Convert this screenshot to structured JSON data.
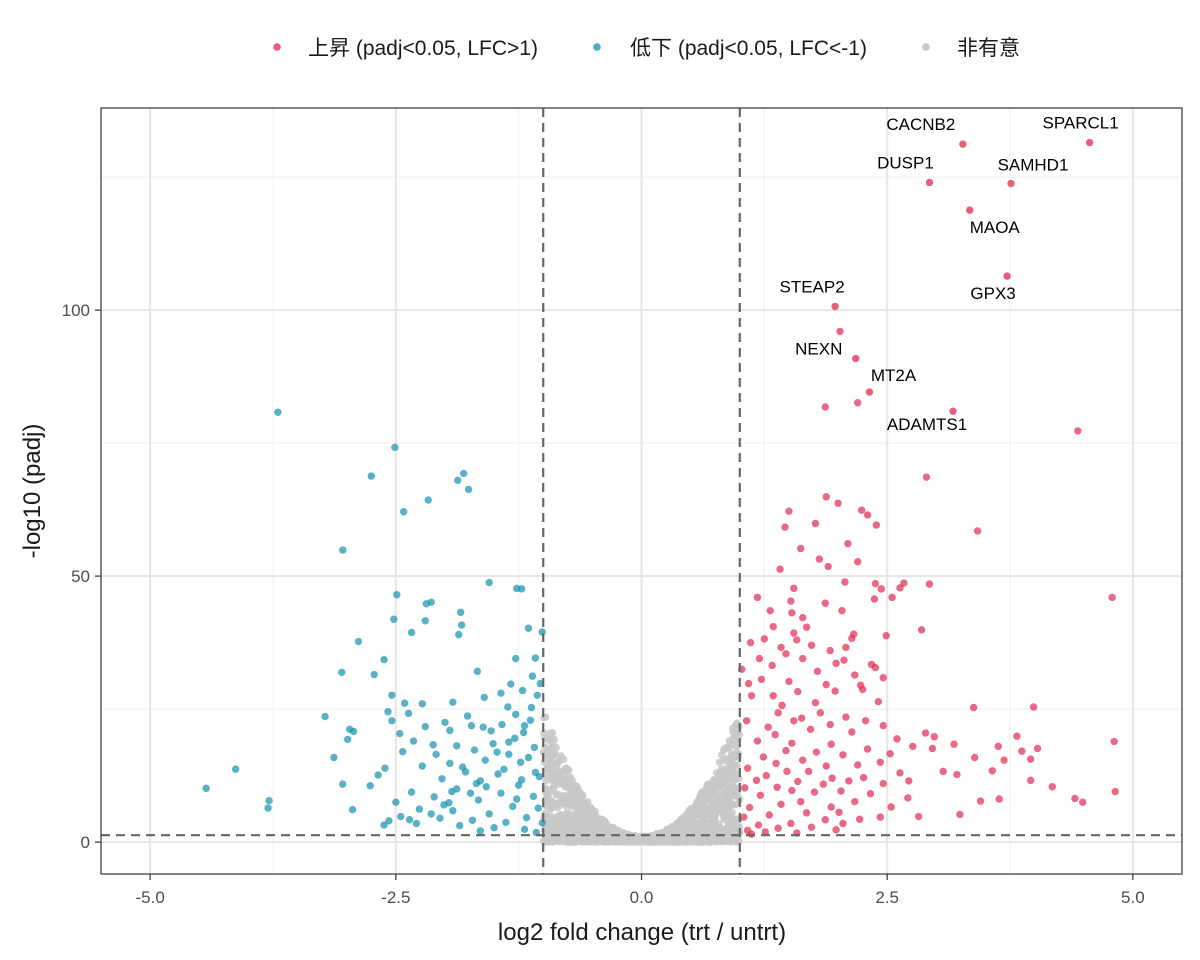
{
  "chart_data": {
    "type": "scatter",
    "subtype": "volcano",
    "title": "",
    "xlabel": "log2 fold change (trt / untrt)",
    "ylabel": "-log10 (padj)",
    "xlim": [
      -5.5,
      5.5
    ],
    "ylim": [
      -6,
      138
    ],
    "x_ticks": [
      -5.0,
      -2.5,
      0.0,
      2.5,
      5.0
    ],
    "x_tick_labels": [
      "-5.0",
      "-2.5",
      "0.0",
      "2.5",
      "5.0"
    ],
    "y_ticks": [
      0,
      50,
      100
    ],
    "y_tick_labels": [
      "0",
      "50",
      "100"
    ],
    "grid": true,
    "legend_position": "top",
    "thresholds": {
      "lfc": [
        -1,
        1
      ],
      "neg_log10_padj": 1.301
    },
    "series": [
      {
        "name": "上昇 (padj<0.05, LFC>1)",
        "color": "#e0284f",
        "key": "up"
      },
      {
        "name": "低下 (padj<0.05, LFC<-1)",
        "color": "#1390ac",
        "key": "down"
      },
      {
        "name": "非有意",
        "color": "#c8c8c8",
        "key": "ns"
      }
    ],
    "labeled_genes": [
      {
        "gene": "SPARCL1",
        "x": 4.56,
        "y": 131.5
      },
      {
        "gene": "CACNB2",
        "x": 3.27,
        "y": 131.2
      },
      {
        "gene": "DUSP1",
        "x": 2.93,
        "y": 124.0
      },
      {
        "gene": "SAMHD1",
        "x": 3.76,
        "y": 123.8
      },
      {
        "gene": "MAOA",
        "x": 3.34,
        "y": 118.8
      },
      {
        "gene": "GPX3",
        "x": 3.72,
        "y": 106.4
      },
      {
        "gene": "STEAP2",
        "x": 1.97,
        "y": 100.7
      },
      {
        "gene": "NEXN",
        "x": 2.18,
        "y": 90.9
      },
      {
        "gene": "MT2A",
        "x": 2.32,
        "y": 84.6
      },
      {
        "gene": "ADAMTS1",
        "x": 3.17,
        "y": 81.0
      }
    ],
    "up_points": [
      [
        2.02,
        96.0
      ],
      [
        1.87,
        81.8
      ],
      [
        2.2,
        82.6
      ],
      [
        4.44,
        77.3
      ],
      [
        2.9,
        68.6
      ],
      [
        1.88,
        64.9
      ],
      [
        2.0,
        63.7
      ],
      [
        2.24,
        62.4
      ],
      [
        2.3,
        61.5
      ],
      [
        1.5,
        62.2
      ],
      [
        1.77,
        59.9
      ],
      [
        2.39,
        59.6
      ],
      [
        3.42,
        58.5
      ],
      [
        1.46,
        59.2
      ],
      [
        2.1,
        56.1
      ],
      [
        1.62,
        55.2
      ],
      [
        1.81,
        53.2
      ],
      [
        2.2,
        52.7
      ],
      [
        1.41,
        51.3
      ],
      [
        1.9,
        51.8
      ],
      [
        2.38,
        48.6
      ],
      [
        2.44,
        47.6
      ],
      [
        2.63,
        47.8
      ],
      [
        2.67,
        48.7
      ],
      [
        2.93,
        48.5
      ],
      [
        1.55,
        47.7
      ],
      [
        2.07,
        48.9
      ],
      [
        2.55,
        46.0
      ],
      [
        4.79,
        46.0
      ],
      [
        1.18,
        46.0
      ],
      [
        1.52,
        45.3
      ],
      [
        1.87,
        44.9
      ],
      [
        2.37,
        45.7
      ],
      [
        1.53,
        43.1
      ],
      [
        1.64,
        42.2
      ],
      [
        2.04,
        43.5
      ],
      [
        2.85,
        39.9
      ],
      [
        1.34,
        40.5
      ],
      [
        1.55,
        39.3
      ],
      [
        2.16,
        39.1
      ],
      [
        2.14,
        38.3
      ],
      [
        1.25,
        38.2
      ],
      [
        1.11,
        37.5
      ],
      [
        1.58,
        38.0
      ],
      [
        2.08,
        36.6
      ],
      [
        1.42,
        36.6
      ],
      [
        1.73,
        37.0
      ],
      [
        1.92,
        36.0
      ],
      [
        1.47,
        35.4
      ],
      [
        2.06,
        34.2
      ],
      [
        1.2,
        34.5
      ],
      [
        1.64,
        34.5
      ],
      [
        1.98,
        33.6
      ],
      [
        2.34,
        33.4
      ],
      [
        2.38,
        32.8
      ],
      [
        1.33,
        33.2
      ],
      [
        1.02,
        32.5
      ],
      [
        1.79,
        32.1
      ],
      [
        2.17,
        31.4
      ],
      [
        2.46,
        30.9
      ],
      [
        1.22,
        30.6
      ],
      [
        1.5,
        30.2
      ],
      [
        1.09,
        29.8
      ],
      [
        1.88,
        29.6
      ],
      [
        2.25,
        28.7
      ],
      [
        1.59,
        28.3
      ],
      [
        1.97,
        28.4
      ],
      [
        1.34,
        27.5
      ],
      [
        1.12,
        27.5
      ],
      [
        2.41,
        26.4
      ],
      [
        1.77,
        26.2
      ],
      [
        3.38,
        25.3
      ],
      [
        3.99,
        25.4
      ],
      [
        1.39,
        24.3
      ],
      [
        1.63,
        23.3
      ],
      [
        1.82,
        24.3
      ],
      [
        2.08,
        23.5
      ],
      [
        2.28,
        22.8
      ],
      [
        1.07,
        22.8
      ],
      [
        1.55,
        22.8
      ],
      [
        1.92,
        22.1
      ],
      [
        2.46,
        21.9
      ],
      [
        1.29,
        21.6
      ],
      [
        1.72,
        21.2
      ],
      [
        2.14,
        20.7
      ],
      [
        1.36,
        20.2
      ],
      [
        2.6,
        19.4
      ],
      [
        3.18,
        18.4
      ],
      [
        3.63,
        18.0
      ],
      [
        3.82,
        19.9
      ],
      [
        4.03,
        17.6
      ],
      [
        1.18,
        19.0
      ],
      [
        1.53,
        18.6
      ],
      [
        1.93,
        18.4
      ],
      [
        2.3,
        17.5
      ],
      [
        2.76,
        18.0
      ],
      [
        2.96,
        17.6
      ],
      [
        4.81,
        18.9
      ],
      [
        1.47,
        17.2
      ],
      [
        1.78,
        16.9
      ],
      [
        2.05,
        16.4
      ],
      [
        2.53,
        16.6
      ],
      [
        1.24,
        16.0
      ],
      [
        3.39,
        15.9
      ],
      [
        3.69,
        15.4
      ],
      [
        3.96,
        15.6
      ],
      [
        1.64,
        15.4
      ],
      [
        2.43,
        15.0
      ],
      [
        1.37,
        14.8
      ],
      [
        1.88,
        14.3
      ],
      [
        2.2,
        14.5
      ],
      [
        1.08,
        13.9
      ],
      [
        1.48,
        13.3
      ],
      [
        1.7,
        13.3
      ],
      [
        2.63,
        13.0
      ],
      [
        3.07,
        13.3
      ],
      [
        3.21,
        12.7
      ],
      [
        1.27,
        12.5
      ],
      [
        1.94,
        12.0
      ],
      [
        2.11,
        11.5
      ],
      [
        2.26,
        12.1
      ],
      [
        1.59,
        11.4
      ],
      [
        1.17,
        11.6
      ],
      [
        3.96,
        11.6
      ],
      [
        2.46,
        11.0
      ],
      [
        2.72,
        11.5
      ],
      [
        1.38,
        10.3
      ],
      [
        1.85,
        10.9
      ],
      [
        1.05,
        10.2
      ],
      [
        2.03,
        9.6
      ],
      [
        1.76,
        9.4
      ],
      [
        1.53,
        9.7
      ],
      [
        4.82,
        9.5
      ],
      [
        2.33,
        9.1
      ],
      [
        1.21,
        8.8
      ],
      [
        2.71,
        8.3
      ],
      [
        3.45,
        7.7
      ],
      [
        4.41,
        8.2
      ],
      [
        4.49,
        7.5
      ],
      [
        1.62,
        7.6
      ],
      [
        1.42,
        7.1
      ],
      [
        2.17,
        7.6
      ],
      [
        2.54,
        6.6
      ],
      [
        1.1,
        6.5
      ],
      [
        1.93,
        6.6
      ],
      [
        2.01,
        5.6
      ],
      [
        1.68,
        5.5
      ],
      [
        1.3,
        5.1
      ],
      [
        2.82,
        4.8
      ],
      [
        2.43,
        4.7
      ],
      [
        3.24,
        5.2
      ],
      [
        1.04,
        4.7
      ],
      [
        1.87,
        4.2
      ],
      [
        2.22,
        4.3
      ],
      [
        1.52,
        3.5
      ],
      [
        1.19,
        3.2
      ],
      [
        2.05,
        3.5
      ],
      [
        1.73,
        2.8
      ],
      [
        1.39,
        2.6
      ],
      [
        1.08,
        2.2
      ],
      [
        1.98,
        2.3
      ],
      [
        1.26,
        1.9
      ],
      [
        1.58,
        1.7
      ],
      [
        1.12,
        1.5
      ],
      [
        4.18,
        10.4
      ],
      [
        3.64,
        8.1
      ],
      [
        2.98,
        19.8
      ],
      [
        3.87,
        17.1
      ],
      [
        1.31,
        43.5
      ],
      [
        1.68,
        40.4
      ],
      [
        2.49,
        38.8
      ],
      [
        2.23,
        29.5
      ],
      [
        1.43,
        25.7
      ],
      [
        2.89,
        20.5
      ],
      [
        3.57,
        13.4
      ]
    ],
    "down_points": [
      [
        -3.7,
        80.8
      ],
      [
        -2.51,
        74.2
      ],
      [
        -1.81,
        69.3
      ],
      [
        -2.75,
        68.8
      ],
      [
        -1.87,
        68.0
      ],
      [
        -1.76,
        66.3
      ],
      [
        -2.17,
        64.3
      ],
      [
        -2.42,
        62.1
      ],
      [
        -3.04,
        54.9
      ],
      [
        -1.55,
        48.8
      ],
      [
        -1.27,
        47.7
      ],
      [
        -1.22,
        47.6
      ],
      [
        -2.49,
        46.5
      ],
      [
        -2.14,
        45.1
      ],
      [
        -2.19,
        44.8
      ],
      [
        -1.84,
        43.2
      ],
      [
        -2.52,
        41.9
      ],
      [
        -2.2,
        41.6
      ],
      [
        -1.83,
        40.8
      ],
      [
        -1.15,
        40.2
      ],
      [
        -2.34,
        39.4
      ],
      [
        -1.86,
        39.0
      ],
      [
        -1.01,
        39.5
      ],
      [
        -2.88,
        37.7
      ],
      [
        -2.62,
        34.3
      ],
      [
        -1.28,
        34.5
      ],
      [
        -1.08,
        34.6
      ],
      [
        -1.67,
        32.1
      ],
      [
        -1.11,
        31.2
      ],
      [
        -3.05,
        31.9
      ],
      [
        -2.72,
        31.5
      ],
      [
        -1.33,
        29.7
      ],
      [
        -1.21,
        28.5
      ],
      [
        -1.43,
        28.0
      ],
      [
        -1.6,
        27.2
      ],
      [
        -2.54,
        27.6
      ],
      [
        -1.06,
        27.6
      ],
      [
        -2.41,
        26.1
      ],
      [
        -2.23,
        26.0
      ],
      [
        -1.36,
        25.4
      ],
      [
        -2.58,
        24.5
      ],
      [
        -2.37,
        24.2
      ],
      [
        -1.28,
        24.0
      ],
      [
        -2.54,
        22.8
      ],
      [
        -1.13,
        22.9
      ],
      [
        -2.0,
        22.5
      ],
      [
        -1.42,
        22.1
      ],
      [
        -1.73,
        21.9
      ],
      [
        -1.61,
        21.6
      ],
      [
        -2.2,
        21.7
      ],
      [
        -1.95,
        21.0
      ],
      [
        -1.2,
        20.6
      ],
      [
        -2.93,
        20.8
      ],
      [
        -2.46,
        20.4
      ],
      [
        -2.99,
        19.3
      ],
      [
        -2.32,
        19.0
      ],
      [
        -1.51,
        18.5
      ],
      [
        -1.88,
        18.1
      ],
      [
        -1.09,
        17.8
      ],
      [
        -1.7,
        17.3
      ],
      [
        -2.43,
        17.0
      ],
      [
        -2.09,
        16.5
      ],
      [
        -1.35,
        16.5
      ],
      [
        -3.13,
        15.9
      ],
      [
        -1.59,
        15.4
      ],
      [
        -1.23,
        15.0
      ],
      [
        -1.95,
        14.8
      ],
      [
        -2.23,
        14.3
      ],
      [
        -2.61,
        13.9
      ],
      [
        -1.79,
        13.2
      ],
      [
        -1.46,
        12.8
      ],
      [
        -1.04,
        12.3
      ],
      [
        -4.13,
        13.7
      ],
      [
        -2.03,
        11.9
      ],
      [
        -1.64,
        11.5
      ],
      [
        -3.04,
        10.9
      ],
      [
        -2.76,
        10.6
      ],
      [
        -1.25,
        10.7
      ],
      [
        -1.88,
        10.0
      ],
      [
        -4.43,
        10.1
      ],
      [
        -2.34,
        9.4
      ],
      [
        -1.43,
        9.2
      ],
      [
        -1.1,
        8.6
      ],
      [
        -2.11,
        8.5
      ],
      [
        -1.66,
        7.9
      ],
      [
        -2.5,
        7.5
      ],
      [
        -3.79,
        7.8
      ],
      [
        -2.94,
        6.1
      ],
      [
        -1.31,
        6.7
      ],
      [
        -2.26,
        6.2
      ],
      [
        -1.92,
        5.9
      ],
      [
        -1.55,
        5.3
      ],
      [
        -3.8,
        6.4
      ],
      [
        -2.45,
        4.8
      ],
      [
        -1.17,
        4.6
      ],
      [
        -2.05,
        4.5
      ],
      [
        -1.72,
        4.1
      ],
      [
        -2.57,
        4.0
      ],
      [
        -1.38,
        3.7
      ],
      [
        -2.29,
        3.5
      ],
      [
        -1.01,
        3.6
      ],
      [
        -1.85,
        3.1
      ],
      [
        -1.5,
        2.7
      ],
      [
        -1.19,
        2.4
      ],
      [
        -1.64,
        2.1
      ],
      [
        -1.07,
        1.8
      ],
      [
        -2.62,
        3.2
      ],
      [
        -2.36,
        4.2
      ],
      [
        -2.14,
        5.3
      ],
      [
        -1.96,
        7.4
      ],
      [
        -1.74,
        9.2
      ],
      [
        -1.58,
        10.4
      ],
      [
        -1.4,
        13.7
      ],
      [
        -1.29,
        19.5
      ],
      [
        -1.12,
        25.3
      ],
      [
        -1.03,
        29.8
      ],
      [
        -1.19,
        21.9
      ],
      [
        -1.47,
        16.9
      ],
      [
        -1.82,
        14.1
      ],
      [
        -2.68,
        12.6
      ],
      [
        -3.22,
        23.6
      ],
      [
        -2.97,
        21.2
      ],
      [
        -2.12,
        18.3
      ],
      [
        -1.27,
        8.1
      ],
      [
        -1.05,
        6.4
      ],
      [
        -1.92,
        26.3
      ],
      [
        -1.77,
        23.7
      ],
      [
        -1.53,
        20.9
      ],
      [
        -1.35,
        18.8
      ],
      [
        -1.15,
        15.9
      ],
      [
        -1.08,
        13.1
      ],
      [
        -1.68,
        11.0
      ],
      [
        -1.93,
        9.5
      ],
      [
        -1.22,
        11.7
      ],
      [
        -2.01,
        7.0
      ]
    ],
    "legend": {
      "up_label": "上昇 (padj<0.05, LFC>1)",
      "down_label": "低下 (padj<0.05, LFC<-1)",
      "ns_label": "非有意"
    }
  }
}
